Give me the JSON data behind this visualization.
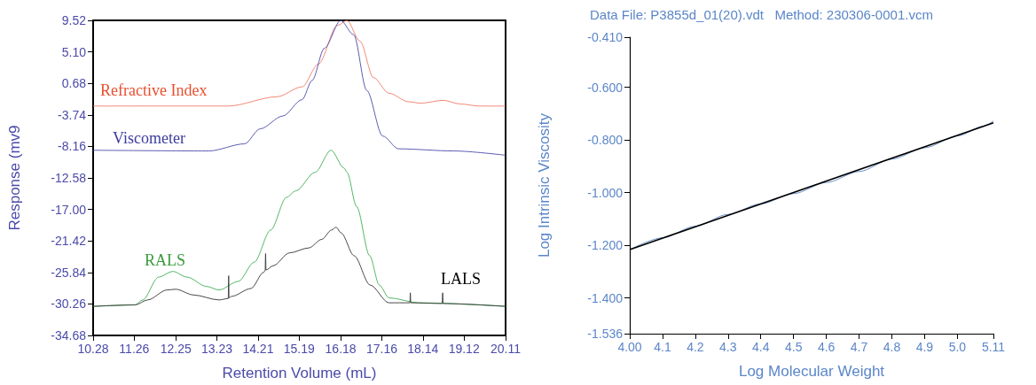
{
  "chart_data": [
    {
      "type": "line",
      "xlabel": "Retention Volume (mL)",
      "ylabel": "Response (mv9",
      "xlim": [
        10.28,
        20.11
      ],
      "xticks": [
        10.28,
        11.26,
        12.25,
        13.23,
        14.21,
        15.19,
        16.18,
        17.16,
        18.14,
        19.12,
        20.11
      ],
      "ylim": [
        -34.68,
        9.52
      ],
      "yticks": [
        9.52,
        {
          "value": 5.1,
          "label": "5.10"
        },
        0.68,
        -3.74,
        -8.16,
        -12.58,
        {
          "value": -17,
          "label": "-17.00"
        },
        -21.42,
        -25.84,
        -30.26,
        -34.68
      ],
      "grid": false,
      "legend": false,
      "marker": "none",
      "line_style": "solid",
      "series": [
        {
          "name": "Refractive Index",
          "color": "#f07a66",
          "x": [
            10.28,
            13.5,
            14.66,
            15.26,
            15.65,
            16.1,
            16.33,
            16.64,
            16.96,
            17.33,
            17.8,
            18.09,
            18.63,
            19.02,
            19.48,
            20.11
          ],
          "values": [
            -2.5,
            -2.5,
            -1.2,
            0.2,
            3.4,
            8.8,
            9.5,
            6.6,
            1.5,
            -0.7,
            -1.9,
            -2.1,
            -1.7,
            -2.2,
            -2.5,
            -2.5
          ]
        },
        {
          "name": "Viscometer",
          "color": "#4a4aaa",
          "x": [
            10.28,
            13.04,
            13.89,
            14.26,
            14.8,
            15.26,
            15.5,
            15.79,
            16.18,
            16.49,
            16.8,
            17.18,
            17.56,
            18.87,
            20.11
          ],
          "values": [
            -8.7,
            -8.8,
            -7.8,
            -5.7,
            -3.9,
            -1.6,
            1.1,
            5.6,
            9.5,
            7.5,
            -0.3,
            -6.7,
            -8.5,
            -8.8,
            -9.4
          ]
        },
        {
          "name": "RALS",
          "color": "#3fae55",
          "x": [
            10.28,
            11.28,
            11.46,
            11.84,
            12.18,
            12.52,
            12.98,
            13.28,
            13.74,
            14.12,
            14.51,
            14.89,
            15.11,
            15.57,
            15.95,
            16.26,
            16.33,
            16.56,
            16.87,
            17.1,
            17.33,
            18.04,
            20.11
          ],
          "values": [
            -30.6,
            -30.4,
            -29.7,
            -26.5,
            -25.7,
            -26.5,
            -27.8,
            -28.3,
            -27.1,
            -24.4,
            -19.9,
            -15.3,
            -14.4,
            -11.8,
            -8.7,
            -11.2,
            -11.8,
            -16.6,
            -23.5,
            -27.6,
            -29.4,
            -30.1,
            -30.6
          ]
        },
        {
          "name": "LALS",
          "color": "#333333",
          "x": [
            10.28,
            11.28,
            11.58,
            12.04,
            12.25,
            12.67,
            13.28,
            13.5,
            13.51,
            13.52,
            13.58,
            14.04,
            14.35,
            14.38,
            14.39,
            14.4,
            14.57,
            14.96,
            15.42,
            15.73,
            15.96,
            16.07,
            16.19,
            16.5,
            16.88,
            17.33,
            17.83,
            17.84,
            17.85,
            18.6,
            18.61,
            18.62,
            20.11
          ],
          "values": [
            -30.6,
            -30.4,
            -29.7,
            -28.3,
            -28.2,
            -29,
            -29.7,
            -29.5,
            -26.3,
            -29.4,
            -29.2,
            -28.1,
            -25.8,
            -25.6,
            -23.2,
            -25.5,
            -24.9,
            -23.1,
            -22.4,
            -21.2,
            -19.9,
            -19.5,
            -20.3,
            -23.5,
            -27.6,
            -30.1,
            -30.1,
            -28.7,
            -30.1,
            -30.2,
            -28.7,
            -30.2,
            -30.6
          ]
        }
      ]
    },
    {
      "type": "line",
      "title": "Data File: P3855d_01(20).vdt   Method: 230306-0001.vcm",
      "xlabel": "Log Molecular Weight",
      "ylabel": "Log Intrinsic Viscosity",
      "xlim": [
        4,
        5.11
      ],
      "xticks": [
        {
          "value": 4,
          "label": "4.00"
        },
        4.1,
        4.2,
        4.3,
        4.4,
        4.5,
        4.6,
        4.7,
        4.8,
        4.9,
        {
          "value": 5,
          "label": "5.0"
        },
        5.11
      ],
      "ylim": [
        -1.536,
        -0.41
      ],
      "yticks": [
        {
          "value": -0.41,
          "label": "-0.410"
        },
        {
          "value": -0.6,
          "label": "-0.600"
        },
        {
          "value": -0.8,
          "label": "-0.800"
        },
        {
          "value": -1,
          "label": "-1.000"
        },
        {
          "value": -1.2,
          "label": "-1.200"
        },
        {
          "value": -1.4,
          "label": "-1.400"
        },
        -1.536
      ],
      "grid": false,
      "legend": false,
      "marker": "none",
      "line_style": "solid",
      "series": [
        {
          "color": "#5b86c8",
          "x": [
            4,
            4.1,
            4.2,
            4.3,
            4.4,
            4.5,
            4.6,
            4.7,
            4.8,
            4.9,
            5,
            5.08,
            5.11
          ],
          "values": [
            -1.217,
            -1.172,
            -1.128,
            -1.083,
            -1.043,
            -1.004,
            -0.962,
            -0.92,
            -0.873,
            -0.83,
            -0.785,
            -0.748,
            -0.728
          ]
        },
        {
          "color": "#000000",
          "x": [
            4,
            5.11
          ],
          "values": [
            -1.217,
            -0.735
          ]
        }
      ]
    }
  ]
}
